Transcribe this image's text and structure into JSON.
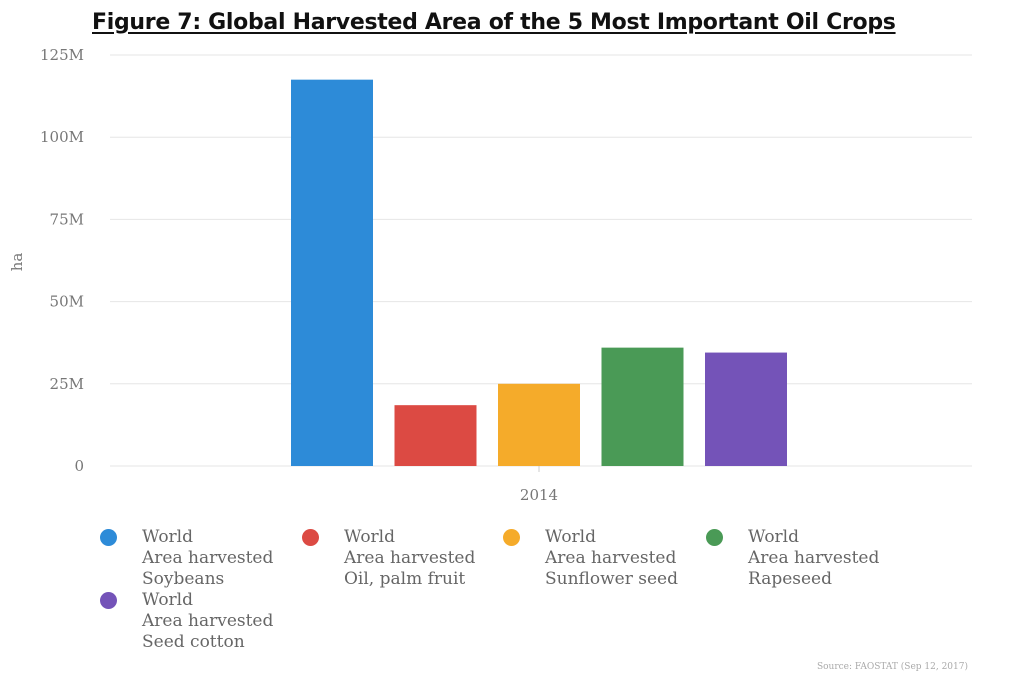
{
  "title": "Figure 7: Global Harvested Area of the 5 Most Important Oil Crops",
  "source": "Source: FAOSTAT (Sep 12, 2017)",
  "colors": {
    "soybeans": "#2d8bd8",
    "palm": "#dc4a43",
    "sunflower": "#f5ab2a",
    "rapeseed": "#4a9a56",
    "seed_cotton": "#7453b8",
    "grid": "#e6e6e6",
    "tick_text": "#777777"
  },
  "legend": [
    {
      "lines": [
        "World",
        "Area harvested",
        "Soybeans"
      ],
      "color": "#2d8bd8"
    },
    {
      "lines": [
        "World",
        "Area harvested",
        "Oil, palm fruit"
      ],
      "color": "#dc4a43"
    },
    {
      "lines": [
        "World",
        "Area harvested",
        "Sunflower seed"
      ],
      "color": "#f5ab2a"
    },
    {
      "lines": [
        "World",
        "Area harvested",
        "Rapeseed"
      ],
      "color": "#4a9a56"
    },
    {
      "lines": [
        "World",
        "Area harvested",
        "Seed cotton"
      ],
      "color": "#7453b8"
    }
  ],
  "chart_data": {
    "type": "bar",
    "categories": [
      "2014"
    ],
    "series": [
      {
        "name": "World Area harvested Soybeans",
        "values": [
          117500000
        ],
        "color": "#2d8bd8"
      },
      {
        "name": "World Area harvested Oil, palm fruit",
        "values": [
          18500000
        ],
        "color": "#dc4a43"
      },
      {
        "name": "World Area harvested Sunflower seed",
        "values": [
          25000000
        ],
        "color": "#f5ab2a"
      },
      {
        "name": "World Area harvested Rapeseed",
        "values": [
          36000000
        ],
        "color": "#4a9a56"
      },
      {
        "name": "World Area harvested Seed cotton",
        "values": [
          34500000
        ],
        "color": "#7453b8"
      }
    ],
    "title": "Figure 7: Global Harvested Area of the 5 Most Important Oil Crops",
    "xlabel": "",
    "ylabel": "ha",
    "ylim": [
      0,
      125000000
    ],
    "yticks": [
      0,
      25000000,
      50000000,
      75000000,
      100000000,
      125000000
    ],
    "ytick_labels": [
      "0",
      "25M",
      "50M",
      "75M",
      "100M",
      "125M"
    ],
    "grid": true,
    "legend_position": "bottom"
  }
}
